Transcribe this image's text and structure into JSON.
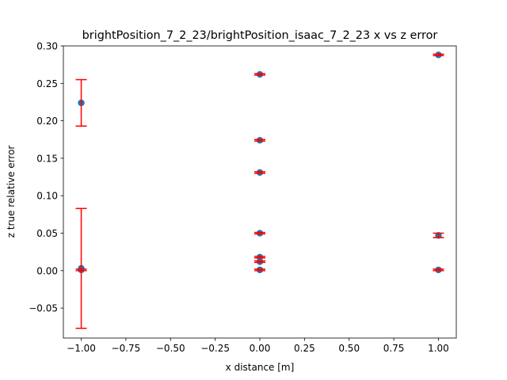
{
  "chart_data": {
    "type": "scatter",
    "title": "brightPosition_7_2_23/brightPosition_isaac_7_2_23 x vs z error",
    "xlabel": "x distance [m]",
    "ylabel": "z true relative error",
    "xlim": [
      -1.1,
      1.1
    ],
    "ylim": [
      -0.09,
      0.3
    ],
    "xticks": [
      -1.0,
      -0.75,
      -0.5,
      -0.25,
      0.0,
      0.25,
      0.5,
      0.75,
      1.0
    ],
    "xtick_labels": [
      "−1.00",
      "−0.75",
      "−0.50",
      "−0.25",
      "0.00",
      "0.25",
      "0.50",
      "0.75",
      "1.00"
    ],
    "yticks": [
      -0.05,
      0.0,
      0.05,
      0.1,
      0.15,
      0.2,
      0.25,
      0.3
    ],
    "ytick_labels": [
      "−0.05",
      "0.00",
      "0.05",
      "0.10",
      "0.15",
      "0.20",
      "0.25",
      "0.30"
    ],
    "grid": false,
    "legend": "none",
    "colors": {
      "marker": "#1f77b4",
      "errorbar": "#ff0000"
    },
    "points": [
      {
        "x": -1.0,
        "y": 0.224,
        "yerr": 0.031
      },
      {
        "x": -1.0,
        "y": 0.003,
        "yerr": 0.08
      },
      {
        "x": -1.0,
        "y": 0.001,
        "yerr": 0.001
      },
      {
        "x": 0.0,
        "y": 0.262,
        "yerr": 0.001
      },
      {
        "x": 0.0,
        "y": 0.174,
        "yerr": 0.001
      },
      {
        "x": 0.0,
        "y": 0.131,
        "yerr": 0.001
      },
      {
        "x": 0.0,
        "y": 0.05,
        "yerr": 0.001
      },
      {
        "x": 0.0,
        "y": 0.018,
        "yerr": 0.001
      },
      {
        "x": 0.0,
        "y": 0.012,
        "yerr": 0.001
      },
      {
        "x": 0.0,
        "y": 0.001,
        "yerr": 0.001
      },
      {
        "x": 1.0,
        "y": 0.288,
        "yerr": 0.001
      },
      {
        "x": 1.0,
        "y": 0.047,
        "yerr": 0.003
      },
      {
        "x": 1.0,
        "y": 0.001,
        "yerr": 0.001
      }
    ]
  }
}
